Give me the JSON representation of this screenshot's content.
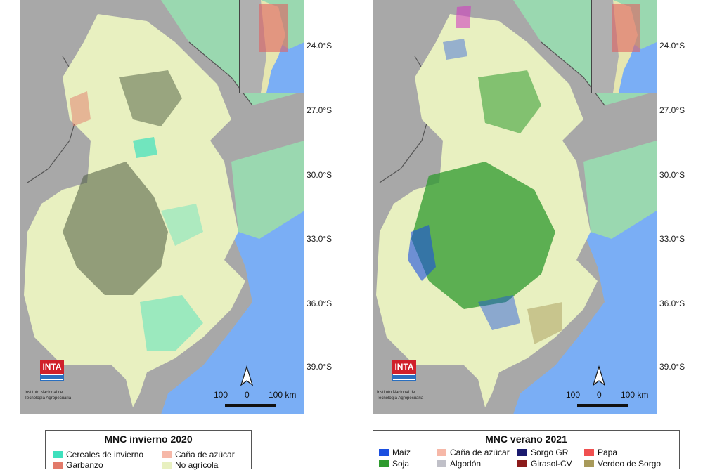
{
  "latitudes": [
    "24.0°S",
    "27.0°S",
    "30.0°S",
    "33.0°S",
    "36.0°S",
    "39.0°S"
  ],
  "maps": [
    {
      "id": "left",
      "legend_title": "MNC invierno 2020",
      "legend_items": [
        {
          "label": "Cereales de invierno",
          "color": "#3ee0bd"
        },
        {
          "label": "Caña de azúcar",
          "color": "#f6b8a8"
        },
        {
          "label": "Garbanzo",
          "color": "#e27a6a"
        },
        {
          "label": "No agrícola",
          "color": "#e8f0c0"
        }
      ]
    },
    {
      "id": "right",
      "legend_title": "MNC verano 2021",
      "legend_items": [
        {
          "label": "Maíz",
          "color": "#1b4fe0"
        },
        {
          "label": "Caña de azúcar",
          "color": "#f6b8a8"
        },
        {
          "label": "Sorgo GR",
          "color": "#1a1a6e"
        },
        {
          "label": "Papa",
          "color": "#f05050"
        },
        {
          "label": "Soja",
          "color": "#2e9a2e"
        },
        {
          "label": "Algodón",
          "color": "#c0c0c8"
        },
        {
          "label": "Girasol-CV",
          "color": "#8b1a1a"
        },
        {
          "label": "Verdeo de Sorgo",
          "color": "#a89a5a"
        }
      ]
    }
  ],
  "logo_text": "INTA",
  "institution": [
    "Instituto Nacional de",
    "Tecnología Agropecuaria"
  ],
  "scale_labels": [
    "100",
    "0",
    "100 km"
  ],
  "north_label": "",
  "colors": {
    "neighbors": "#a8a8a8",
    "ocean": "#7aaef5",
    "green_land": "#9ad8b0",
    "region": "#e8f0c0",
    "winter_crop": "#3ee0bd",
    "dark_patch": "#4a5a3e",
    "summer_soy": "#2e9a2e",
    "summer_maize": "#1b4fe0"
  }
}
